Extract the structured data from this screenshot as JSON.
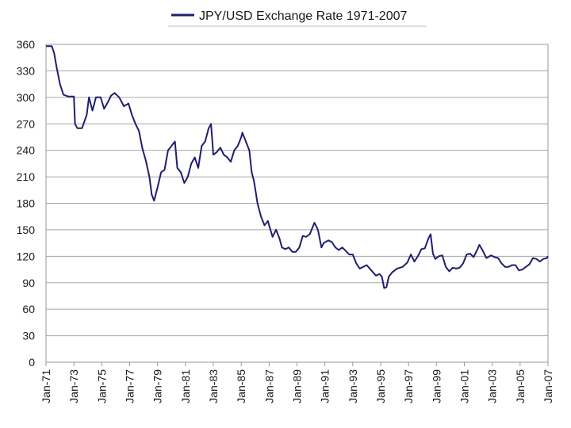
{
  "chart_data": {
    "type": "line",
    "title": "",
    "xlabel": "",
    "ylabel": "",
    "legend": "top",
    "grid": true,
    "ylim": [
      0,
      360
    ],
    "yticks": [
      0,
      30,
      60,
      90,
      120,
      150,
      180,
      210,
      240,
      270,
      300,
      330,
      360
    ],
    "x_tick_labels": [
      "Jan-71",
      "Jan-73",
      "Jan-75",
      "Jan-77",
      "Jan-79",
      "Jan-81",
      "Jan-83",
      "Jan-85",
      "Jan-87",
      "Jan-89",
      "Jan-91",
      "Jan-93",
      "Jan-95",
      "Jan-97",
      "Jan-99",
      "Jan-01",
      "Jan-03",
      "Jan-05",
      "Jan-07"
    ],
    "xlim": [
      "1971-01",
      "2007-01"
    ],
    "series": [
      {
        "name": "JPY/USD Exchange Rate 1971-2007",
        "color": "#1f1f6e",
        "points": [
          [
            "1971-01",
            358
          ],
          [
            "1971-06",
            358
          ],
          [
            "1971-08",
            350
          ],
          [
            "1971-10",
            335
          ],
          [
            "1972-01",
            315
          ],
          [
            "1972-04",
            303
          ],
          [
            "1972-08",
            301
          ],
          [
            "1973-01",
            301
          ],
          [
            "1973-02",
            270
          ],
          [
            "1973-04",
            265
          ],
          [
            "1973-08",
            265
          ],
          [
            "1973-12",
            280
          ],
          [
            "1974-02",
            300
          ],
          [
            "1974-05",
            285
          ],
          [
            "1974-08",
            300
          ],
          [
            "1974-12",
            300
          ],
          [
            "1975-03",
            287
          ],
          [
            "1975-06",
            294
          ],
          [
            "1975-09",
            302
          ],
          [
            "1975-12",
            305
          ],
          [
            "1976-04",
            300
          ],
          [
            "1976-08",
            290
          ],
          [
            "1976-12",
            293
          ],
          [
            "1977-03",
            280
          ],
          [
            "1977-06",
            270
          ],
          [
            "1977-09",
            262
          ],
          [
            "1977-12",
            242
          ],
          [
            "1978-03",
            228
          ],
          [
            "1978-06",
            210
          ],
          [
            "1978-08",
            190
          ],
          [
            "1978-10",
            183
          ],
          [
            "1979-01",
            198
          ],
          [
            "1979-04",
            215
          ],
          [
            "1979-07",
            218
          ],
          [
            "1979-10",
            240
          ],
          [
            "1980-01",
            245
          ],
          [
            "1980-04",
            250
          ],
          [
            "1980-06",
            220
          ],
          [
            "1980-09",
            215
          ],
          [
            "1980-12",
            203
          ],
          [
            "1981-03",
            210
          ],
          [
            "1981-06",
            225
          ],
          [
            "1981-09",
            232
          ],
          [
            "1981-12",
            220
          ],
          [
            "1982-03",
            245
          ],
          [
            "1982-06",
            250
          ],
          [
            "1982-09",
            265
          ],
          [
            "1982-11",
            270
          ],
          [
            "1983-01",
            235
          ],
          [
            "1983-04",
            238
          ],
          [
            "1983-07",
            243
          ],
          [
            "1983-10",
            235
          ],
          [
            "1984-01",
            232
          ],
          [
            "1984-04",
            227
          ],
          [
            "1984-07",
            240
          ],
          [
            "1984-10",
            245
          ],
          [
            "1985-01",
            255
          ],
          [
            "1985-02",
            260
          ],
          [
            "1985-05",
            250
          ],
          [
            "1985-08",
            240
          ],
          [
            "1985-10",
            215
          ],
          [
            "1985-12",
            205
          ],
          [
            "1986-03",
            180
          ],
          [
            "1986-06",
            165
          ],
          [
            "1986-09",
            155
          ],
          [
            "1986-12",
            160
          ],
          [
            "1987-01",
            155
          ],
          [
            "1987-04",
            142
          ],
          [
            "1987-07",
            150
          ],
          [
            "1987-10",
            140
          ],
          [
            "1987-12",
            130
          ],
          [
            "1988-03",
            128
          ],
          [
            "1988-06",
            130
          ],
          [
            "1988-09",
            125
          ],
          [
            "1988-12",
            125
          ],
          [
            "1989-03",
            130
          ],
          [
            "1989-06",
            143
          ],
          [
            "1989-09",
            142
          ],
          [
            "1989-12",
            145
          ],
          [
            "1990-04",
            158
          ],
          [
            "1990-07",
            150
          ],
          [
            "1990-10",
            130
          ],
          [
            "1990-12",
            135
          ],
          [
            "1991-04",
            138
          ],
          [
            "1991-07",
            136
          ],
          [
            "1991-10",
            130
          ],
          [
            "1992-01",
            127
          ],
          [
            "1992-04",
            130
          ],
          [
            "1992-07",
            126
          ],
          [
            "1992-10",
            122
          ],
          [
            "1993-01",
            122
          ],
          [
            "1993-04",
            112
          ],
          [
            "1993-07",
            106
          ],
          [
            "1993-10",
            108
          ],
          [
            "1994-01",
            110
          ],
          [
            "1994-05",
            104
          ],
          [
            "1994-09",
            98
          ],
          [
            "1994-12",
            100
          ],
          [
            "1995-02",
            97
          ],
          [
            "1995-04",
            84
          ],
          [
            "1995-06",
            85
          ],
          [
            "1995-08",
            97
          ],
          [
            "1995-11",
            102
          ],
          [
            "1996-03",
            106
          ],
          [
            "1996-08",
            108
          ],
          [
            "1996-12",
            113
          ],
          [
            "1997-03",
            122
          ],
          [
            "1997-06",
            114
          ],
          [
            "1997-09",
            120
          ],
          [
            "1997-12",
            128
          ],
          [
            "1998-03",
            129
          ],
          [
            "1998-06",
            140
          ],
          [
            "1998-08",
            145
          ],
          [
            "1998-10",
            123
          ],
          [
            "1998-12",
            117
          ],
          [
            "1999-03",
            120
          ],
          [
            "1999-06",
            121
          ],
          [
            "1999-09",
            108
          ],
          [
            "1999-12",
            103
          ],
          [
            "2000-03",
            107
          ],
          [
            "2000-06",
            106
          ],
          [
            "2000-09",
            107
          ],
          [
            "2000-12",
            112
          ],
          [
            "2001-03",
            122
          ],
          [
            "2001-06",
            123
          ],
          [
            "2001-09",
            119
          ],
          [
            "2001-12",
            127
          ],
          [
            "2002-02",
            133
          ],
          [
            "2002-05",
            126
          ],
          [
            "2002-08",
            118
          ],
          [
            "2002-12",
            121
          ],
          [
            "2003-03",
            119
          ],
          [
            "2003-06",
            118
          ],
          [
            "2003-09",
            112
          ],
          [
            "2003-12",
            108
          ],
          [
            "2004-03",
            108
          ],
          [
            "2004-06",
            110
          ],
          [
            "2004-09",
            110
          ],
          [
            "2004-12",
            104
          ],
          [
            "2005-03",
            105
          ],
          [
            "2005-06",
            108
          ],
          [
            "2005-09",
            111
          ],
          [
            "2005-12",
            118
          ],
          [
            "2006-03",
            117
          ],
          [
            "2006-06",
            114
          ],
          [
            "2006-09",
            117
          ],
          [
            "2006-12",
            118
          ],
          [
            "2007-01",
            120
          ]
        ]
      }
    ]
  }
}
